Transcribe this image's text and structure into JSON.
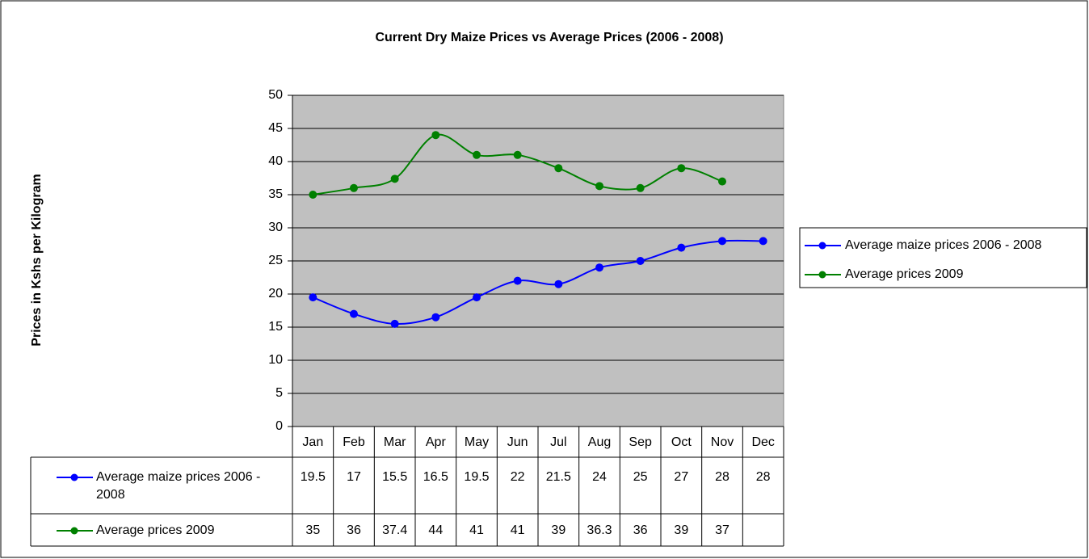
{
  "chart_data": {
    "type": "line",
    "title": "Current Dry Maize Prices vs Average Prices (2006 - 2008)",
    "y_label": "Prices in Kshs per Kilogram",
    "categories": [
      "Jan",
      "Feb",
      "Mar",
      "Apr",
      "May",
      "Jun",
      "Jul",
      "Aug",
      "Sep",
      "Oct",
      "Nov",
      "Dec"
    ],
    "series": [
      {
        "name": "Average maize prices 2006 - 2008",
        "color": "#0000ff",
        "values": [
          19.5,
          17,
          15.5,
          16.5,
          19.5,
          22,
          21.5,
          24,
          25,
          27,
          28,
          28
        ]
      },
      {
        "name": "Average prices 2009",
        "color": "#008000",
        "values": [
          35,
          36,
          37.4,
          44,
          41,
          41,
          39,
          36.3,
          36,
          39,
          37,
          null
        ]
      }
    ],
    "ylim": [
      0,
      50
    ],
    "yticks": [
      0,
      5,
      10,
      15,
      20,
      25,
      30,
      35,
      40,
      45,
      50
    ],
    "grid": true,
    "legend": "right",
    "plot_background": "#c0c0c0",
    "smooth": true,
    "data_table": true
  }
}
